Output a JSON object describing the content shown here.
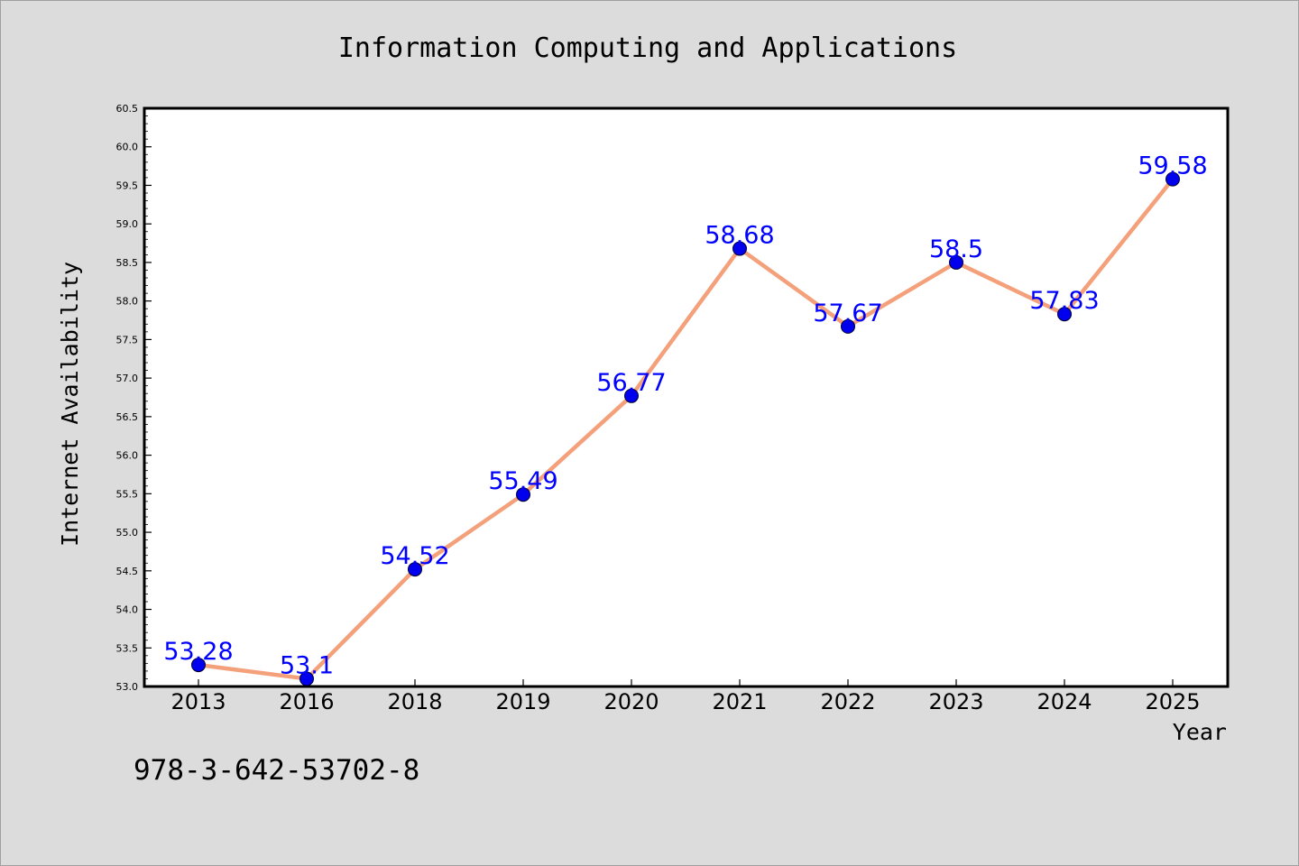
{
  "chart_data": {
    "type": "line",
    "title": "Information Computing and Applications",
    "xlabel": "Year",
    "ylabel": "Internet Availability",
    "footer": "978-3-642-53702-8",
    "categories": [
      "2013",
      "2016",
      "2018",
      "2019",
      "2020",
      "2021",
      "2022",
      "2023",
      "2024",
      "2025"
    ],
    "values": [
      53.28,
      53.1,
      54.52,
      55.49,
      56.77,
      58.68,
      57.67,
      58.5,
      57.83,
      59.58
    ],
    "data_labels": [
      "53.28",
      "53.1",
      "54.52",
      "55.49",
      "56.77",
      "58.68",
      "57.67",
      "58.5",
      "57.83",
      "59.58"
    ],
    "ylim": [
      53.0,
      60.5
    ],
    "yticks": [
      "53.0",
      "53.5",
      "54.0",
      "54.5",
      "55.0",
      "55.5",
      "56.0",
      "56.5",
      "57.0",
      "57.5",
      "58.0",
      "58.5",
      "59.0",
      "59.5",
      "60.0",
      "60.5"
    ],
    "grid": false,
    "colors": {
      "line": "#f4a07a",
      "marker": "#0000ee",
      "label": "#0000ff",
      "background": "#dcdcdc",
      "plot_background": "#ffffff"
    }
  }
}
